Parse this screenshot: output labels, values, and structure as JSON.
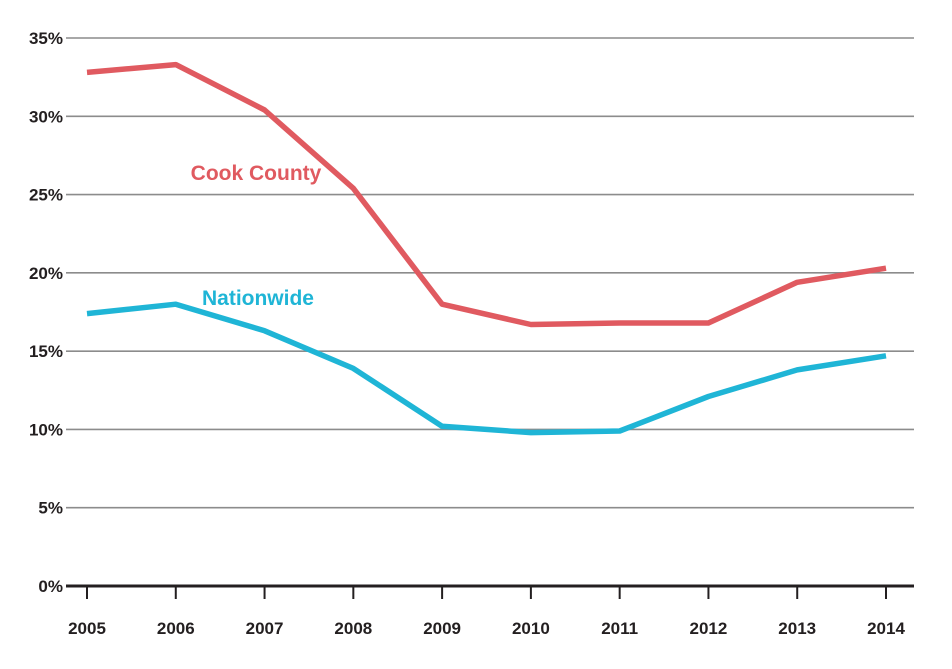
{
  "chart_data": {
    "type": "line",
    "title": "",
    "xlabel": "",
    "ylabel": "",
    "x": [
      "2005",
      "2006",
      "2007",
      "2008",
      "2009",
      "2010",
      "2011",
      "2012",
      "2013",
      "2014"
    ],
    "ylim": [
      0,
      35
    ],
    "y_ticks": [
      0,
      5,
      10,
      15,
      20,
      25,
      30,
      35
    ],
    "y_tick_labels": [
      "0%",
      "5%",
      "10%",
      "15%",
      "20%",
      "25%",
      "30%",
      "35%"
    ],
    "grid": true,
    "legend": "inline labels",
    "series": [
      {
        "name": "Cook County",
        "color": "#e05a60",
        "values": [
          32.8,
          33.3,
          30.4,
          25.4,
          18.0,
          16.7,
          16.8,
          16.8,
          19.4,
          20.3
        ]
      },
      {
        "name": "Nationwide",
        "color": "#1fb5d6",
        "values": [
          17.4,
          18.0,
          16.3,
          13.9,
          10.2,
          9.8,
          9.9,
          12.1,
          13.8,
          14.7
        ]
      }
    ]
  }
}
